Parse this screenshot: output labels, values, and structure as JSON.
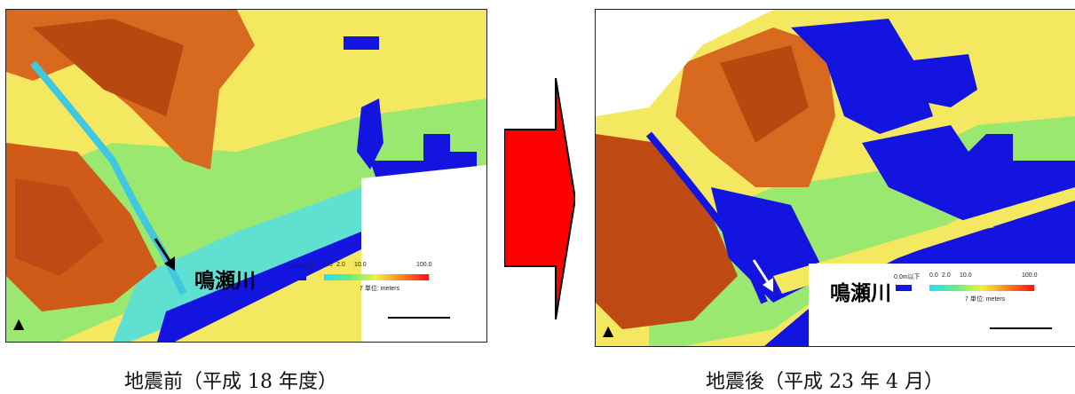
{
  "panels": {
    "before": {
      "caption": "地震前（平成 18 年度）",
      "river_label": "鳴瀬川",
      "legend": {
        "below_label": "0.0m以下",
        "ticks": [
          "0.0",
          "2.0",
          "10.0",
          "100.0"
        ],
        "units": "7 単位: meters"
      }
    },
    "after": {
      "caption": "地震後（平成 23 年 4 月）",
      "river_label": "鳴瀬川",
      "legend": {
        "below_label": "0.0m以下",
        "ticks": [
          "0.0",
          "2.0",
          "10.0",
          "100.0"
        ],
        "units": "7 単位: meters"
      }
    }
  },
  "colors": {
    "low_blue": "#1414e0",
    "arrow_red": "#ff0000",
    "terrain_high": "#c04010",
    "terrain_mid": "#f0e050",
    "terrain_low": "#40e0f0"
  }
}
